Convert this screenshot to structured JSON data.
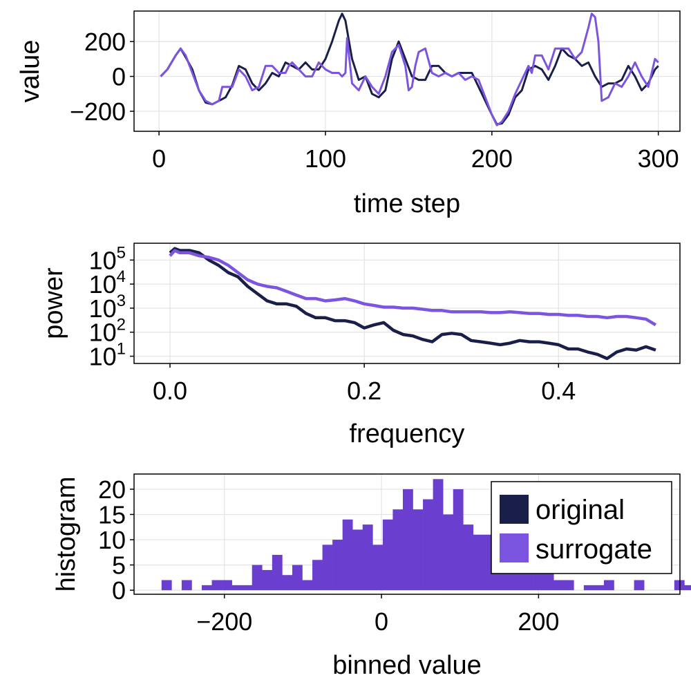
{
  "colors": {
    "original": "#1a1f4a",
    "surrogate": "#7b54e0",
    "overlap": "#6a3fd0"
  },
  "chart_data": [
    {
      "type": "line",
      "xlabel": "time step",
      "ylabel": "value",
      "xlim": [
        -15,
        313
      ],
      "ylim": [
        -315,
        375
      ],
      "xticks": [
        0,
        100,
        200,
        300
      ],
      "xtick_labels": [
        "0",
        "100",
        "200",
        "300"
      ],
      "yticks": [
        -200,
        0,
        200
      ],
      "ytick_labels": [
        "−200",
        "0",
        "200"
      ],
      "grid": true,
      "series": [
        {
          "name": "original",
          "x": [
            1,
            5,
            10,
            13,
            16,
            20,
            24,
            28,
            32,
            36,
            40,
            44,
            48,
            52,
            56,
            60,
            64,
            68,
            72,
            76,
            80,
            84,
            88,
            92,
            96,
            100,
            104,
            108,
            110,
            112,
            116,
            120,
            124,
            128,
            132,
            136,
            140,
            144,
            148,
            152,
            156,
            160,
            164,
            168,
            172,
            176,
            180,
            184,
            188,
            192,
            196,
            200,
            203,
            206,
            210,
            214,
            218,
            222,
            226,
            230,
            234,
            238,
            242,
            246,
            250,
            254,
            258,
            262,
            266,
            270,
            274,
            278,
            282,
            286,
            290,
            294,
            298,
            300
          ],
          "y": [
            0,
            40,
            120,
            160,
            110,
            40,
            -80,
            -150,
            -160,
            -140,
            -120,
            -50,
            60,
            40,
            -40,
            -80,
            -40,
            20,
            0,
            80,
            60,
            40,
            80,
            40,
            40,
            100,
            200,
            320,
            360,
            320,
            100,
            -20,
            0,
            -100,
            -120,
            -80,
            100,
            200,
            100,
            0,
            -20,
            -20,
            60,
            60,
            20,
            0,
            20,
            20,
            20,
            -60,
            -140,
            -220,
            -275,
            -270,
            -220,
            -120,
            -80,
            40,
            60,
            40,
            -20,
            60,
            160,
            120,
            100,
            60,
            80,
            0,
            -60,
            -40,
            -40,
            -20,
            60,
            0,
            -80,
            -40,
            40,
            60
          ]
        },
        {
          "name": "surrogate",
          "x": [
            1,
            5,
            10,
            13,
            16,
            20,
            24,
            28,
            32,
            36,
            38,
            40,
            44,
            48,
            52,
            56,
            60,
            64,
            68,
            72,
            76,
            78,
            80,
            84,
            88,
            92,
            96,
            100,
            104,
            108,
            110,
            112,
            113,
            116,
            120,
            124,
            128,
            132,
            136,
            140,
            144,
            148,
            150,
            152,
            154,
            156,
            160,
            164,
            168,
            172,
            176,
            180,
            184,
            188,
            192,
            196,
            200,
            203,
            206,
            210,
            214,
            218,
            222,
            224,
            226,
            230,
            234,
            238,
            242,
            246,
            250,
            254,
            258,
            260,
            262,
            264,
            266,
            270,
            274,
            278,
            282,
            286,
            290,
            294,
            298,
            300
          ],
          "y": [
            0,
            40,
            120,
            160,
            120,
            20,
            -80,
            -140,
            -160,
            -140,
            -60,
            -60,
            -60,
            40,
            0,
            -80,
            -60,
            60,
            60,
            20,
            20,
            60,
            80,
            40,
            0,
            0,
            80,
            40,
            20,
            20,
            0,
            20,
            220,
            -40,
            -80,
            0,
            -60,
            -100,
            0,
            140,
            180,
            60,
            -80,
            -60,
            60,
            140,
            160,
            20,
            0,
            20,
            0,
            20,
            -20,
            0,
            -20,
            -120,
            -220,
            -280,
            -260,
            -200,
            -100,
            -20,
            60,
            20,
            120,
            120,
            40,
            160,
            160,
            160,
            100,
            140,
            280,
            360,
            340,
            200,
            -140,
            -120,
            -40,
            -60,
            0,
            80,
            0,
            -60,
            100,
            80
          ]
        }
      ]
    },
    {
      "type": "line",
      "xlabel": "frequency",
      "ylabel": "power",
      "yscale": "log10",
      "xlim": [
        -0.037,
        0.525
      ],
      "ylim": [
        5,
        500000
      ],
      "xticks": [
        0.0,
        0.2,
        0.4
      ],
      "xtick_labels": [
        "0.0",
        "0.2",
        "0.4"
      ],
      "yticks": [
        10,
        100,
        1000,
        10000,
        100000
      ],
      "ytick_bases": [
        "10",
        "10",
        "10",
        "10",
        "10"
      ],
      "ytick_exponents": [
        "1",
        "2",
        "3",
        "4",
        "5"
      ],
      "grid": true,
      "series": [
        {
          "name": "original",
          "x": [
            0.0,
            0.005,
            0.01,
            0.02,
            0.03,
            0.04,
            0.05,
            0.06,
            0.07,
            0.08,
            0.09,
            0.1,
            0.11,
            0.12,
            0.13,
            0.14,
            0.15,
            0.16,
            0.17,
            0.18,
            0.19,
            0.2,
            0.21,
            0.22,
            0.23,
            0.24,
            0.25,
            0.26,
            0.27,
            0.28,
            0.29,
            0.3,
            0.31,
            0.32,
            0.33,
            0.34,
            0.35,
            0.36,
            0.37,
            0.38,
            0.39,
            0.4,
            0.41,
            0.42,
            0.43,
            0.44,
            0.45,
            0.46,
            0.47,
            0.48,
            0.49,
            0.5
          ],
          "y": [
            200000,
            300000,
            250000,
            250000,
            200000,
            100000,
            60000,
            30000,
            20000,
            8000,
            4000,
            2000,
            1500,
            1500,
            1200,
            600,
            400,
            400,
            300,
            300,
            250,
            150,
            200,
            250,
            120,
            80,
            70,
            50,
            40,
            80,
            90,
            80,
            45,
            40,
            35,
            30,
            35,
            45,
            40,
            40,
            35,
            30,
            20,
            20,
            15,
            12,
            8,
            15,
            20,
            18,
            25,
            18
          ]
        },
        {
          "name": "surrogate",
          "x": [
            0.0,
            0.005,
            0.01,
            0.02,
            0.03,
            0.04,
            0.05,
            0.06,
            0.07,
            0.08,
            0.09,
            0.1,
            0.11,
            0.12,
            0.13,
            0.14,
            0.15,
            0.16,
            0.17,
            0.18,
            0.19,
            0.2,
            0.21,
            0.22,
            0.23,
            0.24,
            0.25,
            0.26,
            0.27,
            0.28,
            0.29,
            0.3,
            0.31,
            0.32,
            0.33,
            0.34,
            0.35,
            0.36,
            0.37,
            0.38,
            0.39,
            0.4,
            0.41,
            0.42,
            0.43,
            0.44,
            0.45,
            0.46,
            0.47,
            0.48,
            0.49,
            0.5
          ],
          "y": [
            150000,
            250000,
            200000,
            200000,
            150000,
            130000,
            100000,
            60000,
            30000,
            15000,
            10000,
            8000,
            7000,
            5000,
            3500,
            2500,
            2500,
            2000,
            2200,
            2500,
            2000,
            1500,
            1300,
            1100,
            1100,
            1000,
            1000,
            900,
            800,
            800,
            700,
            700,
            700,
            700,
            650,
            650,
            700,
            650,
            600,
            600,
            550,
            550,
            500,
            500,
            450,
            450,
            400,
            450,
            450,
            400,
            350,
            200
          ]
        }
      ]
    },
    {
      "type": "bar",
      "xlabel": "binned value",
      "ylabel": "histogram",
      "xlim": [
        -315,
        380
      ],
      "ylim": [
        -0.8,
        23
      ],
      "xticks": [
        -200,
        0,
        200
      ],
      "xtick_labels": [
        "−200",
        "0",
        "200"
      ],
      "yticks": [
        0,
        5,
        10,
        15,
        20
      ],
      "ytick_labels": [
        "0",
        "5",
        "10",
        "15",
        "20"
      ],
      "grid": true,
      "legend_position": "top-right",
      "bin_width": 12.8,
      "bin_start": -280,
      "bin_values": [
        2,
        0,
        2,
        0,
        1,
        2,
        2,
        1,
        1,
        5,
        4,
        7,
        3,
        5,
        2,
        6,
        9,
        10,
        14,
        12,
        13,
        9,
        14,
        16,
        20,
        16,
        18,
        22,
        15,
        20,
        13,
        11,
        11,
        9,
        10,
        5,
        9,
        6,
        4,
        2,
        2,
        0,
        1,
        1,
        2,
        0,
        0,
        2,
        0,
        0,
        0,
        2,
        1,
        2
      ],
      "series": [
        {
          "name": "original"
        },
        {
          "name": "surrogate"
        }
      ]
    }
  ]
}
